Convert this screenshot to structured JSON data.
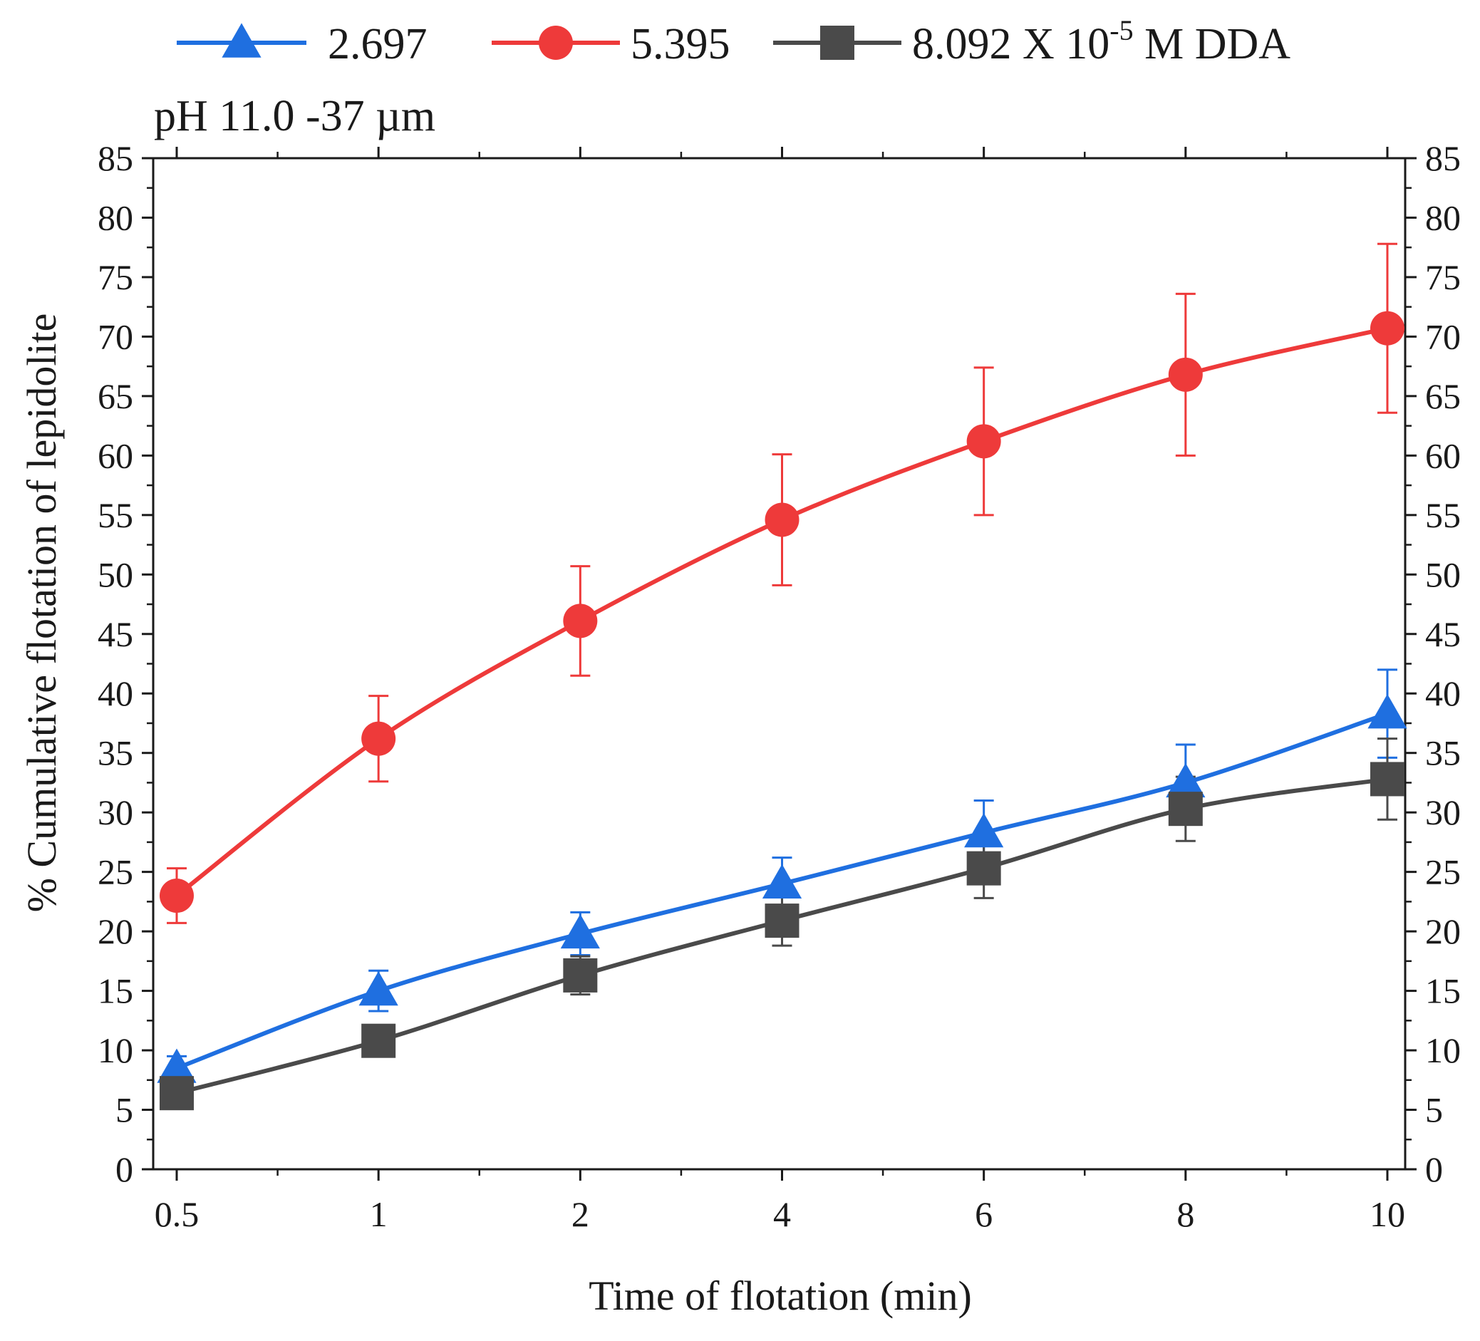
{
  "chart_data": {
    "type": "line",
    "title": "",
    "annotation": "pH 11.0  -37 µm",
    "xlabel": "Time of flotation (min)",
    "ylabel": "% Cumulative flotation of lepidolite",
    "ylabel_right": "",
    "categories": [
      "0.5",
      "1",
      "2",
      "4",
      "6",
      "8",
      "10"
    ],
    "ylim": [
      0,
      85
    ],
    "yticks": [
      "0",
      "5",
      "10",
      "15",
      "20",
      "25",
      "30",
      "35",
      "40",
      "45",
      "50",
      "55",
      "60",
      "65",
      "70",
      "75",
      "80",
      "85"
    ],
    "grid": false,
    "legend_position": "top",
    "legend_suffix_prefix": "8.092 X 10",
    "legend_suffix_exponent": "-5",
    "legend_suffix_rest": " M DDA",
    "series": [
      {
        "name": "2.697",
        "color": "#1f6fe0",
        "marker": "triangle",
        "values": [
          8.5,
          15.0,
          19.8,
          24.0,
          28.3,
          32.5,
          38.3
        ],
        "errors": [
          1.0,
          1.7,
          1.8,
          2.2,
          2.7,
          3.2,
          3.7
        ]
      },
      {
        "name": "5.395",
        "color": "#ee3a3a",
        "marker": "circle",
        "values": [
          23.0,
          36.2,
          46.1,
          54.6,
          61.2,
          66.8,
          70.7
        ],
        "errors": [
          2.3,
          3.6,
          4.6,
          5.5,
          6.2,
          6.8,
          7.1
        ]
      },
      {
        "name": "8.092 X 10-5 M DDA",
        "color": "#4a4a4a",
        "marker": "square",
        "values": [
          6.4,
          10.8,
          16.3,
          20.9,
          25.3,
          30.3,
          32.8
        ],
        "errors": [
          0.8,
          1.1,
          1.6,
          2.1,
          2.5,
          2.7,
          3.4
        ]
      }
    ]
  }
}
